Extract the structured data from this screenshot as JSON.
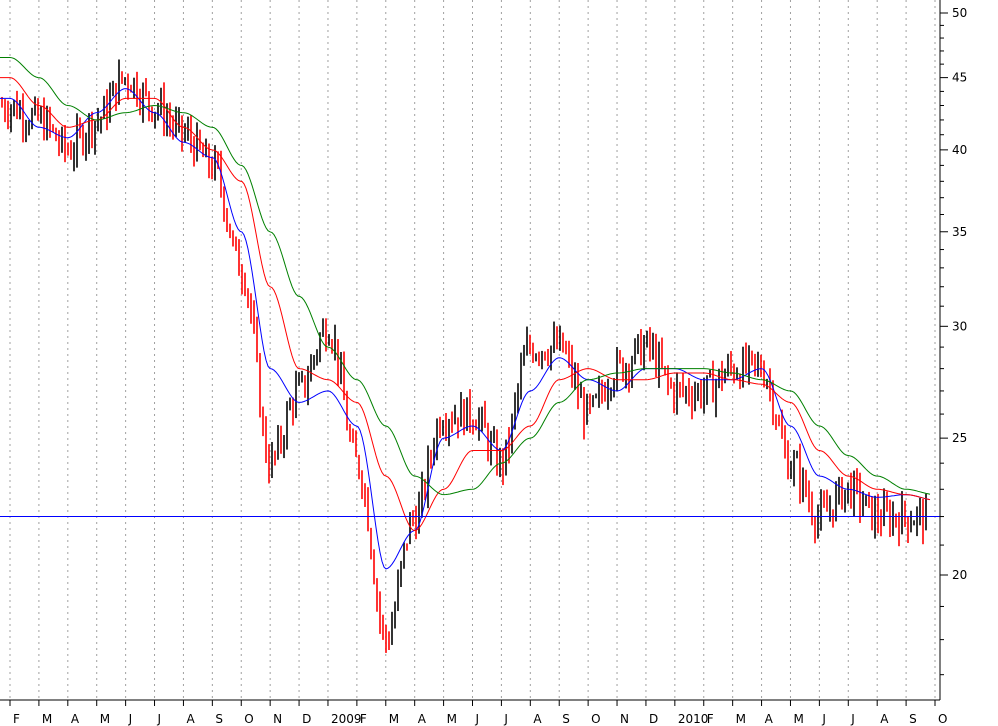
{
  "chart_data": {
    "type": "candlestick",
    "title": "",
    "xlabel": "",
    "ylabel": "",
    "y_scale": "log",
    "ylim": [
      16,
      50
    ],
    "grid": "vertical-dotted",
    "y_tick_labels": [
      20,
      25,
      30,
      35,
      40,
      45,
      50
    ],
    "x_tick_labels": [
      "F",
      "M",
      "A",
      "M",
      "J",
      "J",
      "A",
      "S",
      "O",
      "N",
      "D",
      "2009",
      "F",
      "M",
      "A",
      "M",
      "J",
      "J",
      "A",
      "S",
      "O",
      "N",
      "D",
      "2010",
      "F",
      "M",
      "A",
      "M",
      "J",
      "J",
      "A",
      "S",
      "O"
    ],
    "x": [
      "2008-02",
      "2008-03",
      "2008-04",
      "2008-05",
      "2008-06",
      "2008-07",
      "2008-08",
      "2008-09",
      "2008-10",
      "2008-11",
      "2008-12",
      "2009-01",
      "2009-02",
      "2009-03",
      "2009-04",
      "2009-05",
      "2009-06",
      "2009-07",
      "2009-08",
      "2009-09",
      "2009-10",
      "2009-11",
      "2009-12",
      "2010-01",
      "2010-02",
      "2010-03",
      "2010-04",
      "2010-05",
      "2010-06",
      "2010-07",
      "2010-08",
      "2010-09",
      "2010-10"
    ],
    "price_path": [
      43,
      42,
      40,
      42,
      45,
      43,
      41,
      39,
      33,
      24,
      27,
      30,
      24,
      18,
      22,
      26,
      26,
      24,
      29,
      29,
      26,
      28,
      29,
      27,
      27,
      28,
      28,
      24,
      22,
      23,
      22,
      22,
      22
    ],
    "horizontal_line": {
      "value": 22.0,
      "color": "#0000ff"
    },
    "series": [
      {
        "type": "price",
        "up_color": "#000000",
        "down_color": "#ff0000"
      },
      {
        "type": "moving-average",
        "color": "#0000ff",
        "values": [
          43.5,
          41.5,
          40.8,
          42.5,
          44.2,
          42.5,
          40.5,
          39.5,
          35,
          28,
          26.5,
          27,
          25.5,
          20.2,
          21.5,
          25,
          25.5,
          24.5,
          27,
          28.5,
          27.5,
          27,
          28,
          28,
          27.5,
          27.5,
          28,
          25.5,
          23.5,
          23,
          22.7,
          22.8,
          22.6
        ]
      },
      {
        "type": "moving-average",
        "color": "#ff0000",
        "values": [
          45,
          43,
          41.5,
          42,
          43.5,
          43.5,
          41.5,
          40,
          38,
          32,
          28,
          27.5,
          26.5,
          23.5,
          21.5,
          23,
          24.5,
          24.5,
          25.5,
          27.5,
          28,
          27.5,
          27.5,
          27.8,
          27.8,
          27.5,
          27.3,
          26.5,
          24.5,
          23.5,
          23,
          22.8,
          22.6
        ]
      },
      {
        "type": "moving-average",
        "color": "#008000",
        "values": [
          46.5,
          45,
          43,
          42,
          42.5,
          43,
          42.5,
          41.5,
          39,
          35,
          31.5,
          29,
          27.5,
          25.5,
          23.5,
          22.8,
          23,
          24,
          25,
          26.5,
          27.5,
          27.8,
          28,
          28,
          28,
          27.8,
          27.5,
          27,
          25.5,
          24.3,
          23.5,
          23,
          22.8
        ]
      }
    ],
    "colors": {
      "background": "#ffffff",
      "grid": "#a0a0a0",
      "axis": "#000000"
    }
  }
}
